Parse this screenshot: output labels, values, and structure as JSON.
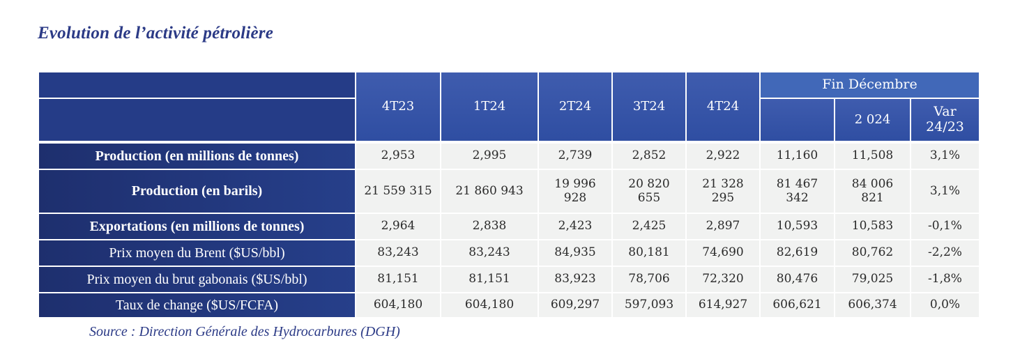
{
  "title": "Evolution de l’activité pétrolière",
  "source": "Source : Direction Générale des Hydrocarbures (DGH)",
  "header": {
    "fin_decembre": "Fin Décembre",
    "columns": [
      "4T23",
      "1T24",
      "2T24",
      "3T24",
      "4T24",
      "",
      "2 024",
      "Var 24/23"
    ]
  },
  "rows": [
    {
      "label": "Production (en millions de tonnes)",
      "values": [
        "2,953",
        "2,995",
        "2,739",
        "2,852",
        "2,922",
        "11,160",
        "11,508",
        "3,1%"
      ]
    },
    {
      "label": "Production (en barils)",
      "values": [
        "21 559 315",
        "21 860 943",
        "19 996 928",
        "20 820 655",
        "21 328 295",
        "81 467 342",
        "84 006 821",
        "3,1%"
      ]
    },
    {
      "label": "Exportations (en millions de tonnes)",
      "values": [
        "2,964",
        "2,838",
        "2,423",
        "2,425",
        "2,897",
        "10,593",
        "10,583",
        "-0,1%"
      ]
    },
    {
      "label": "Prix moyen du Brent ($US/bbl)",
      "values": [
        "83,243",
        "83,243",
        "84,935",
        "80,181",
        "74,690",
        "82,619",
        "80,762",
        "-2,2%"
      ]
    },
    {
      "label": "Prix moyen du brut gabonais ($US/bbl)",
      "values": [
        "81,151",
        "81,151",
        "83,923",
        "78,706",
        "72,320",
        "80,476",
        "79,025",
        "-1,8%"
      ]
    },
    {
      "label": "Taux de change ($US/FCFA)",
      "values": [
        "604,180",
        "604,180",
        "609,297",
        "597,093",
        "614,927",
        "606,621",
        "606,374",
        "0,0%"
      ]
    }
  ]
}
